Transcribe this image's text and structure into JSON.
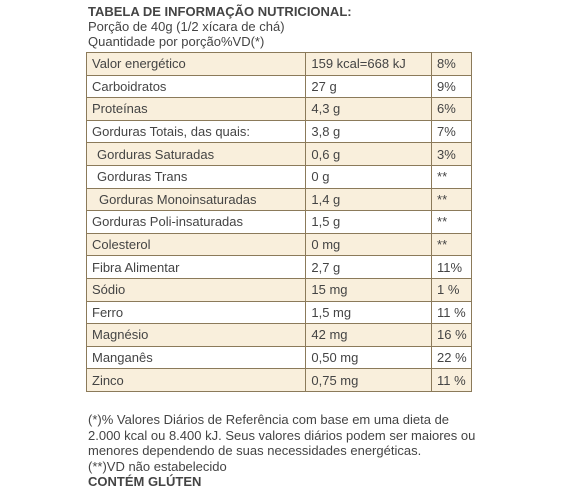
{
  "header": {
    "title": "TABELA DE INFORMAÇÃO NUTRICIONAL:",
    "serving": "Porção de 40g (1/2 xícara de chá)",
    "columns": "Quantidade por porção%VD(*)"
  },
  "table": {
    "rows": [
      [
        "Valor energético",
        "159 kcal=668 kJ",
        "8%"
      ],
      [
        "Carboidratos",
        "27 g",
        "9%"
      ],
      [
        "Proteínas",
        "4,3 g",
        "6%"
      ],
      [
        "Gorduras Totais, das quais:",
        "3,8 g",
        "7%"
      ],
      [
        "Gorduras Saturadas",
        "0,6 g",
        "3%"
      ],
      [
        "Gorduras Trans",
        "0 g",
        "**"
      ],
      [
        "Gorduras Monoinsaturadas",
        "1,4 g",
        "**"
      ],
      [
        "Gorduras Poli-insaturadas",
        "1,5 g",
        "**"
      ],
      [
        "Colesterol",
        "0 mg",
        "**"
      ],
      [
        "Fibra Alimentar",
        "2,7 g",
        "11%"
      ],
      [
        "Sódio",
        "15 mg",
        "1 %"
      ],
      [
        "Ferro",
        "1,5 mg",
        "11 %"
      ],
      [
        "Magnésio",
        "42 mg",
        "16 %"
      ],
      [
        "Manganês",
        "0,50 mg",
        "22 %"
      ],
      [
        "Zinco",
        "0,75 mg",
        "11 %"
      ]
    ]
  },
  "footer": {
    "lines": [
      "(*)% Valores Diários de Referência com base em uma dieta de",
      "2.000 kcal ou 8.400 kJ. Seus valores diários podem ser maiores ou",
      "menores dependendo de suas necessidades energéticas.",
      "(**)VD não estabelecido"
    ],
    "allergen": "CONTÉM GLÚTEN"
  }
}
